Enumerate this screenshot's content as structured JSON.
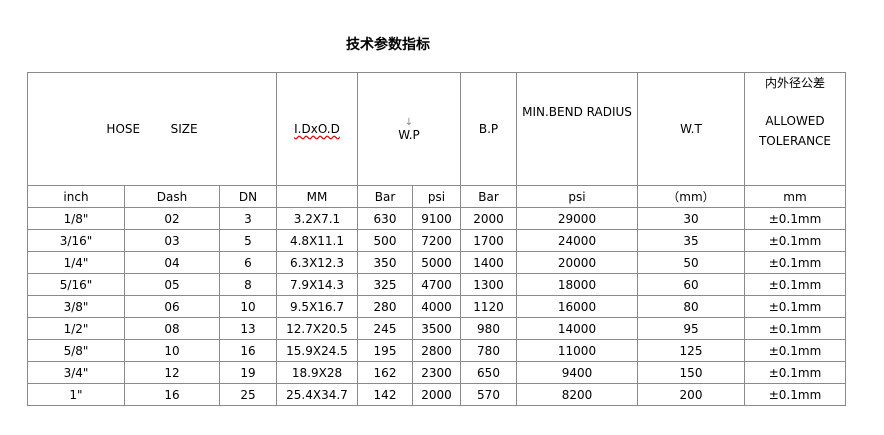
{
  "title": "技术参数指标",
  "header": {
    "hose_size": "HOSE        SIZE",
    "id_od": "I.DxO.D",
    "wp_arrow": "↓",
    "wp": "W.P",
    "bp": "B.P",
    "min_bend_radius": "MIN.BEND RADIUS",
    "wt": "W.T",
    "tolerance_cn": "内外径公差",
    "tolerance_en_1": "ALLOWED",
    "tolerance_en_2": "TOLERANCE"
  },
  "units": [
    "inch",
    "Dash",
    "DN",
    "MM",
    "Bar",
    "psi",
    "Bar",
    "psi",
    "（mm）",
    "mm"
  ],
  "rows": [
    [
      "1/8\"",
      "02",
      "3",
      "3.2X7.1",
      "630",
      "9100",
      "2000",
      "29000",
      "30",
      "±0.1mm"
    ],
    [
      "3/16\"",
      "03",
      "5",
      "4.8X11.1",
      "500",
      "7200",
      "1700",
      "24000",
      "35",
      "±0.1mm"
    ],
    [
      "1/4\"",
      "04",
      "6",
      "6.3X12.3",
      "350",
      "5000",
      "1400",
      "20000",
      "50",
      "±0.1mm"
    ],
    [
      "5/16\"",
      "05",
      "8",
      "7.9X14.3",
      "325",
      "4700",
      "1300",
      "18000",
      "60",
      "±0.1mm"
    ],
    [
      "3/8\"",
      "06",
      "10",
      "9.5X16.7",
      "280",
      "4000",
      "1120",
      "16000",
      "80",
      "±0.1mm"
    ],
    [
      "1/2\"",
      "08",
      "13",
      "12.7X20.5",
      "245",
      "3500",
      "980",
      "14000",
      "95",
      "±0.1mm"
    ],
    [
      "5/8\"",
      "10",
      "16",
      "15.9X24.5",
      "195",
      "2800",
      "780",
      "11000",
      "125",
      "±0.1mm"
    ],
    [
      "3/4\"",
      "12",
      "19",
      "18.9X28",
      "162",
      "2300",
      "650",
      "9400",
      "150",
      "±0.1mm"
    ],
    [
      "1\"",
      "16",
      "25",
      "25.4X34.7",
      "142",
      "2000",
      "570",
      "8200",
      "200",
      "±0.1mm"
    ]
  ]
}
